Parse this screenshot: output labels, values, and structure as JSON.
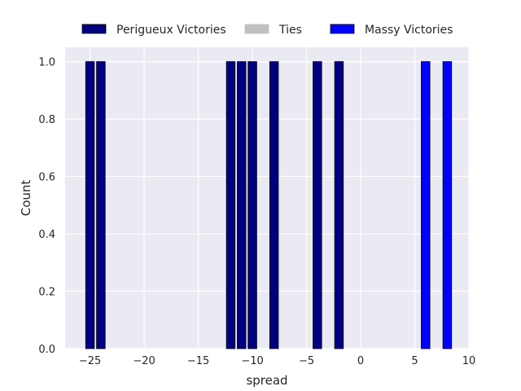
{
  "chart_data": {
    "type": "bar",
    "title": "",
    "xlabel": "spread",
    "ylabel": "Count",
    "xlim": [
      -27.3,
      10.0
    ],
    "ylim": [
      0,
      1.05
    ],
    "grid": true,
    "legend_placement": "top-center",
    "xticks": [
      -25,
      -20,
      -15,
      -10,
      -5,
      0,
      5,
      10
    ],
    "yticks": [
      0.0,
      0.2,
      0.4,
      0.6,
      0.8,
      1.0
    ],
    "xtick_labels": [
      "−25",
      "−20",
      "−15",
      "−10",
      "−5",
      "0",
      "5",
      "10"
    ],
    "ytick_labels": [
      "0.0",
      "0.2",
      "0.4",
      "0.6",
      "0.8",
      "1.0"
    ],
    "bar_width": 0.8,
    "series": [
      {
        "name": "Perigueux Victories",
        "color": "#000080",
        "bars": [
          {
            "x": -25,
            "count": 1
          },
          {
            "x": -24,
            "count": 1
          },
          {
            "x": -12,
            "count": 1
          },
          {
            "x": -11,
            "count": 1
          },
          {
            "x": -10,
            "count": 1
          },
          {
            "x": -8,
            "count": 1
          },
          {
            "x": -4,
            "count": 1
          },
          {
            "x": -2,
            "count": 1
          }
        ]
      },
      {
        "name": "Ties",
        "color": "#c0c0c0",
        "bars": []
      },
      {
        "name": "Massy Victories",
        "color": "#0000ff",
        "bars": [
          {
            "x": 6,
            "count": 1
          },
          {
            "x": 8,
            "count": 1
          }
        ]
      }
    ]
  }
}
